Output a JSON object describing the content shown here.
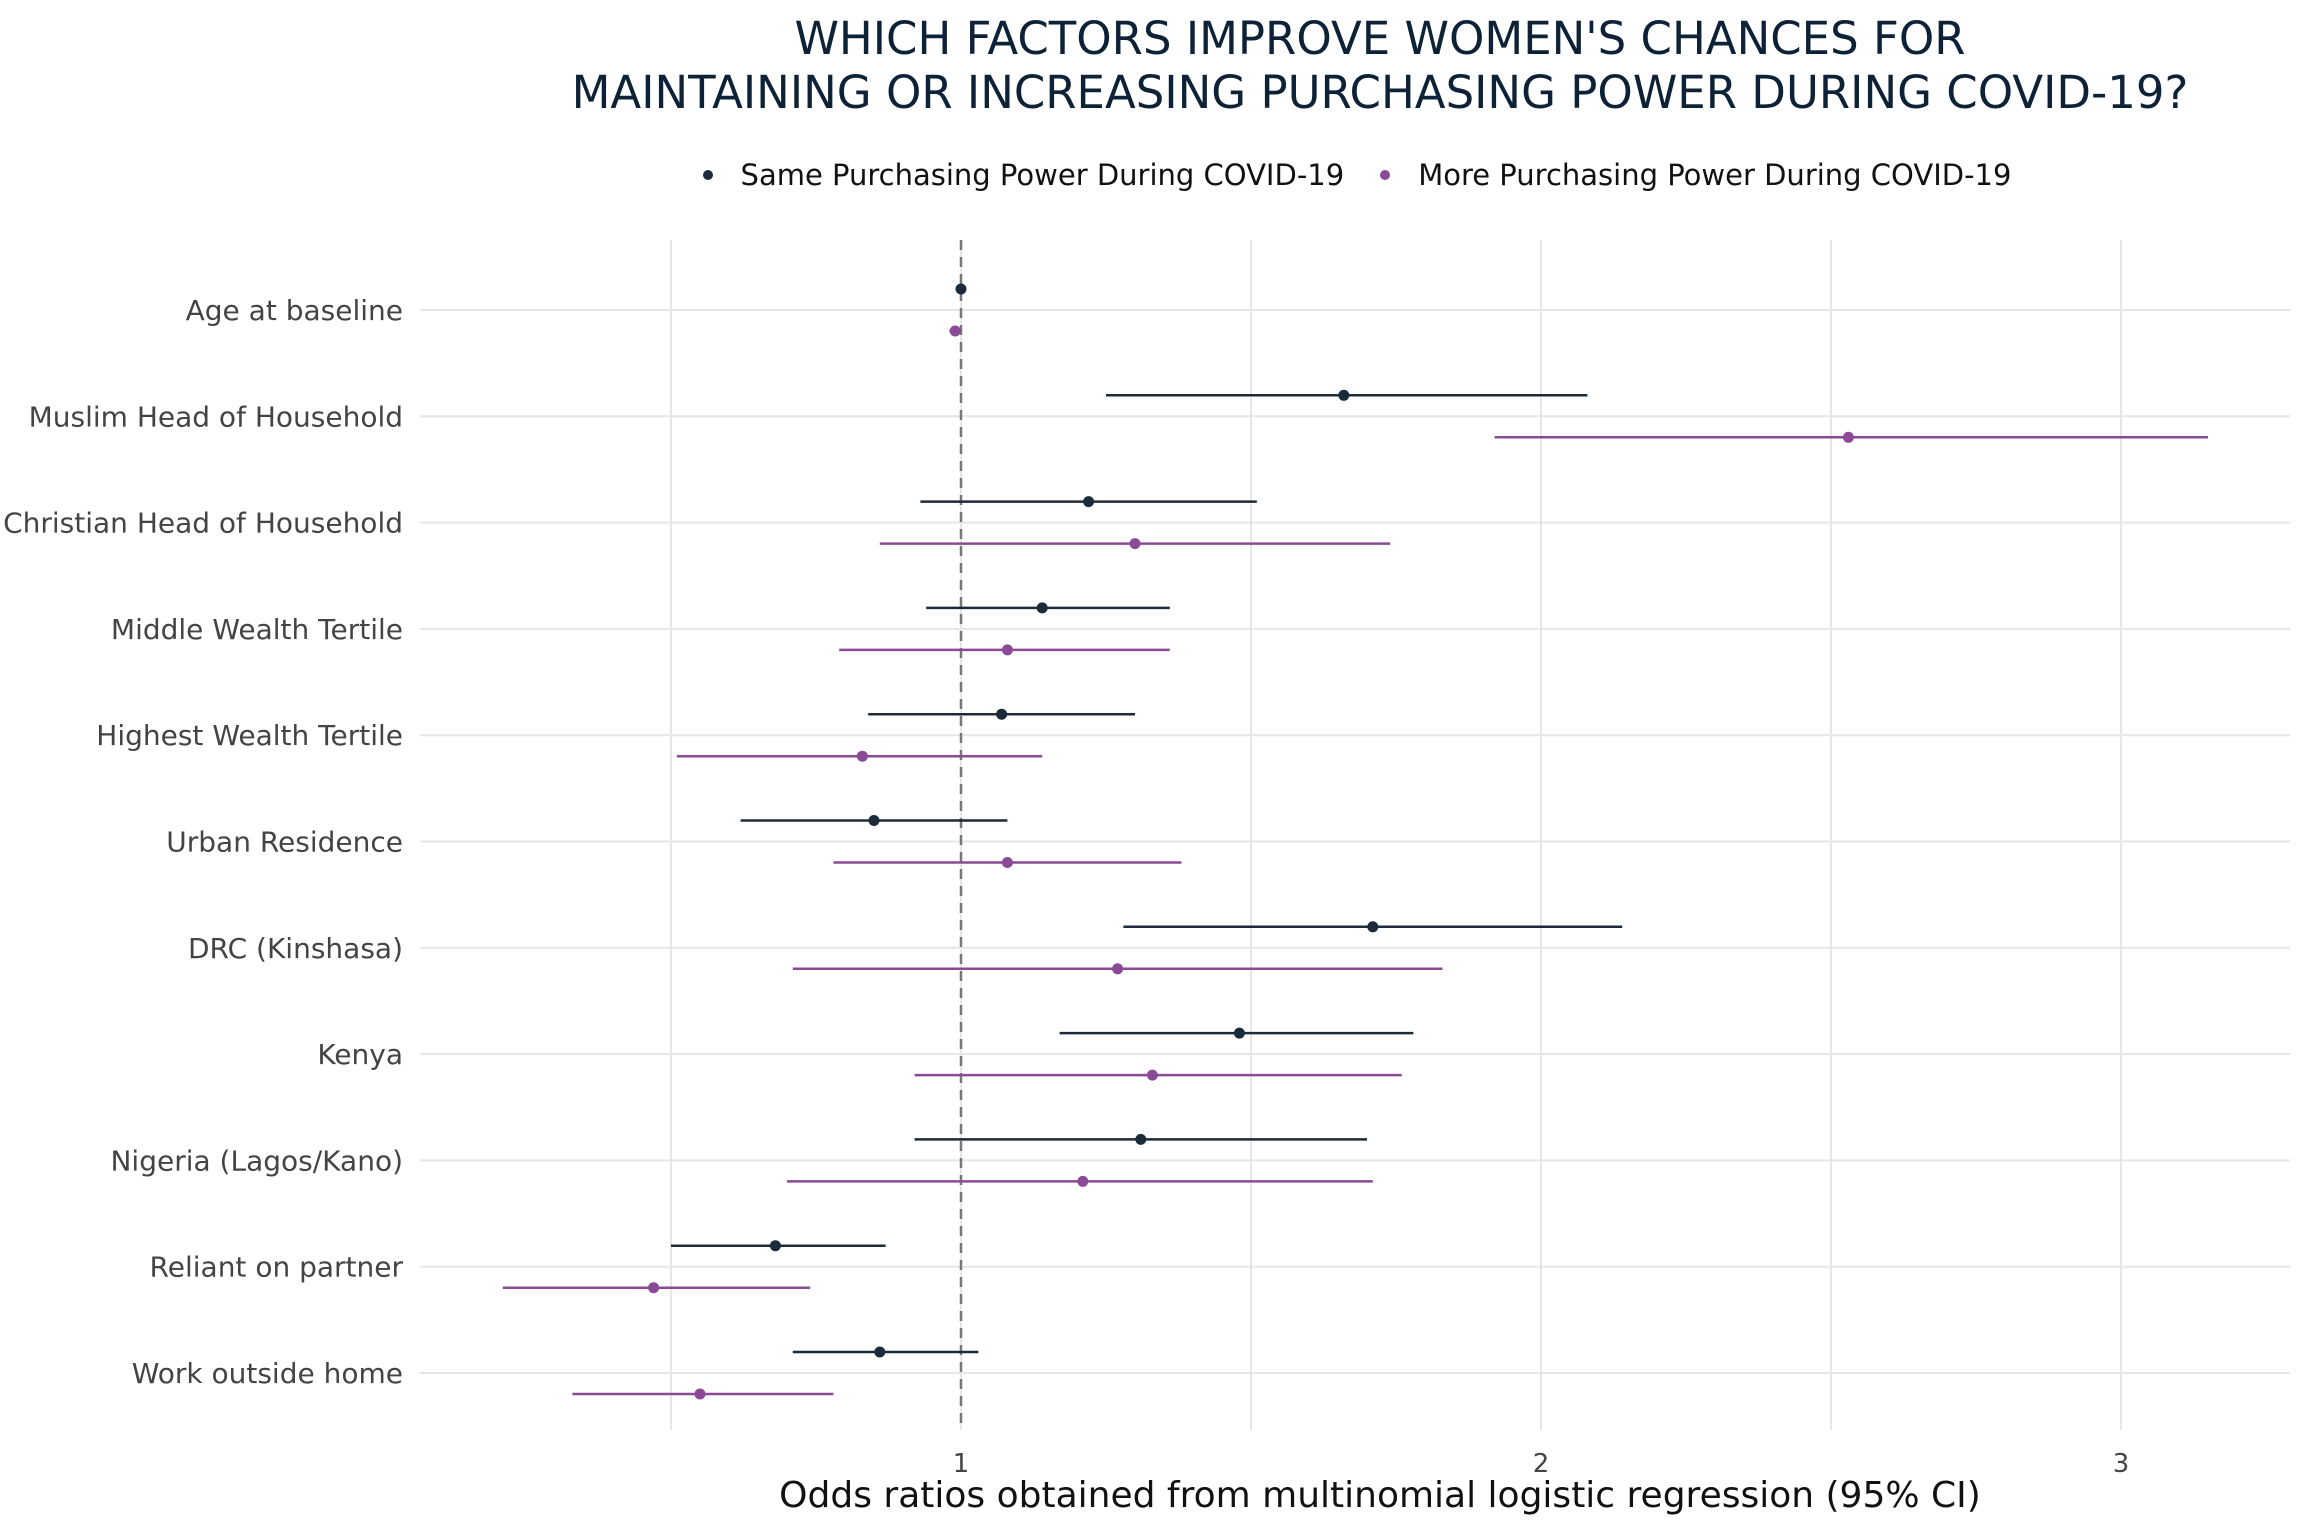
{
  "colors": {
    "same": "#1b2b3a",
    "more": "#8b4a96",
    "grid": "#e6e6e6",
    "reference": "#777777"
  },
  "chart_data": {
    "type": "forest",
    "title_lines": [
      "WHICH FACTORS IMPROVE WOMEN'S CHANCES FOR",
      "MAINTAINING OR INCREASING PURCHASING POWER DURING COVID-19?"
    ],
    "xlabel": "Odds ratios obtained from multinomial logistic regression (95% CI)",
    "ylabel": "",
    "xlim": [
      0.08,
      3.3
    ],
    "xticks": [
      1,
      2,
      3
    ],
    "reference_line": 1,
    "grid": true,
    "legend_position": "top",
    "categories": [
      "Age at baseline",
      "Muslim Head of Household",
      "Christian Head of Household",
      "Middle Wealth Tertile",
      "Highest Wealth Tertile",
      "Urban Residence",
      "DRC (Kinshasa)",
      "Kenya",
      "Nigeria (Lagos/Kano)",
      "Reliant on partner",
      "Work outside home"
    ],
    "series": [
      {
        "name": "Same Purchasing Power During COVID-19",
        "estimate": [
          1.0,
          1.66,
          1.22,
          1.14,
          1.07,
          0.85,
          1.71,
          1.48,
          1.31,
          0.68,
          0.86
        ],
        "lower": [
          1.0,
          1.25,
          0.93,
          0.94,
          0.84,
          0.62,
          1.28,
          1.17,
          0.92,
          0.5,
          0.71
        ],
        "upper": [
          1.0,
          2.08,
          1.51,
          1.36,
          1.3,
          1.08,
          2.14,
          1.78,
          1.7,
          0.87,
          1.03
        ]
      },
      {
        "name": "More Purchasing Power During COVID-19",
        "estimate": [
          0.99,
          2.53,
          1.3,
          1.08,
          0.83,
          1.08,
          1.27,
          1.33,
          1.21,
          0.47,
          0.55
        ],
        "lower": [
          0.98,
          1.92,
          0.86,
          0.79,
          0.51,
          0.78,
          0.71,
          0.92,
          0.7,
          0.21,
          0.33
        ],
        "upper": [
          1.0,
          3.15,
          1.74,
          1.36,
          1.14,
          1.38,
          1.83,
          1.76,
          1.71,
          0.74,
          0.78
        ]
      }
    ]
  }
}
